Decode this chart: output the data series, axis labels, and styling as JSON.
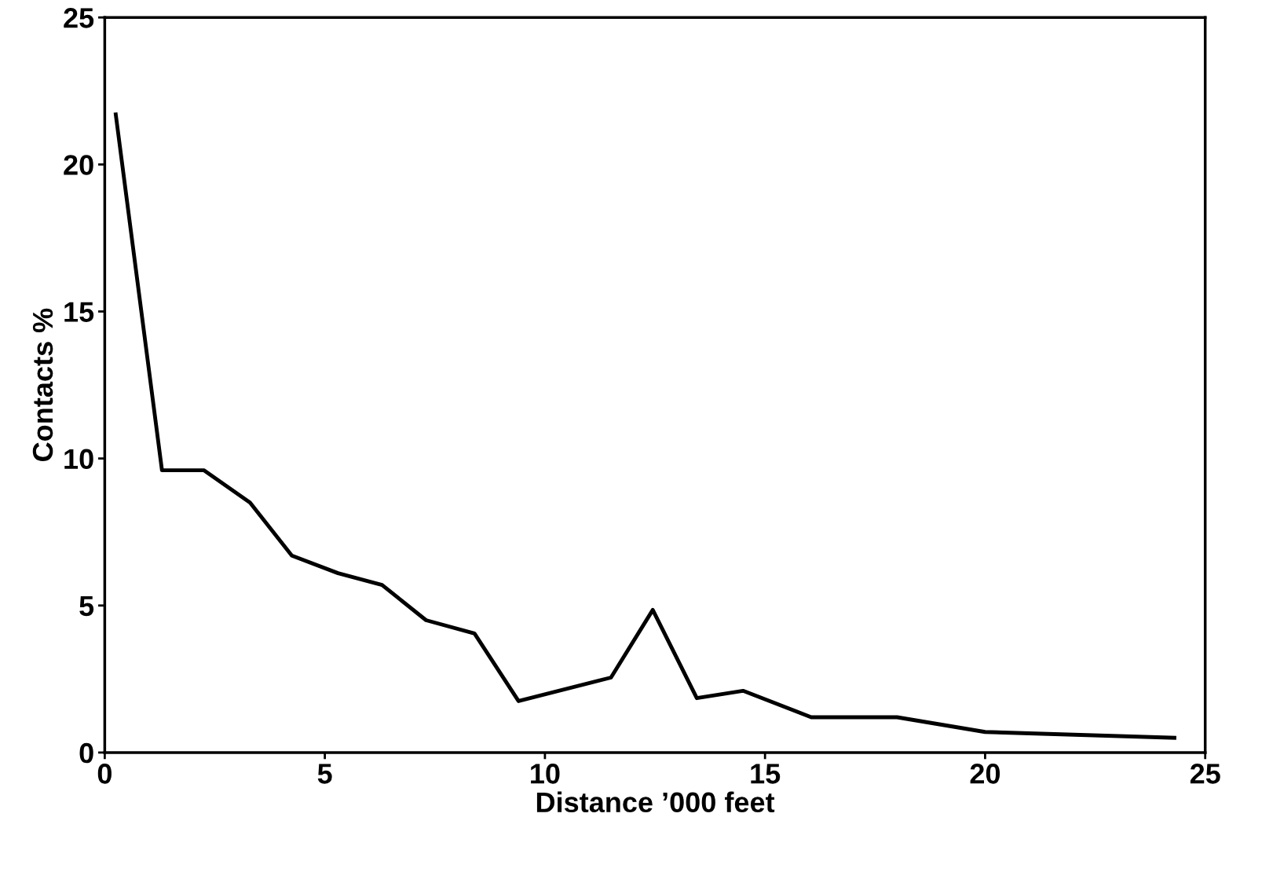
{
  "chart_data": {
    "type": "line",
    "xlabel": "Distance ’000 feet",
    "ylabel": "Contacts %",
    "x": [
      0.25,
      1.3,
      2.25,
      3.3,
      4.25,
      5.3,
      6.3,
      7.3,
      8.4,
      9.4,
      11.5,
      12.45,
      13.45,
      14.5,
      16.05,
      18.0,
      20.0,
      24.3
    ],
    "series": [
      {
        "color": "#000000",
        "values": [
          21.7,
          9.6,
          9.6,
          8.5,
          6.7,
          6.1,
          5.7,
          4.5,
          4.05,
          1.75,
          2.55,
          4.85,
          1.85,
          2.1,
          1.2,
          1.2,
          0.7,
          0.5
        ]
      }
    ],
    "xlim": [
      0,
      25
    ],
    "ylim": [
      0,
      25
    ],
    "xticks": [
      0,
      5,
      10,
      15,
      20,
      25
    ],
    "yticks": [
      0,
      5,
      10,
      15,
      20,
      25
    ],
    "grid": false,
    "legend": false,
    "marker": "none",
    "line_style": "solid"
  }
}
